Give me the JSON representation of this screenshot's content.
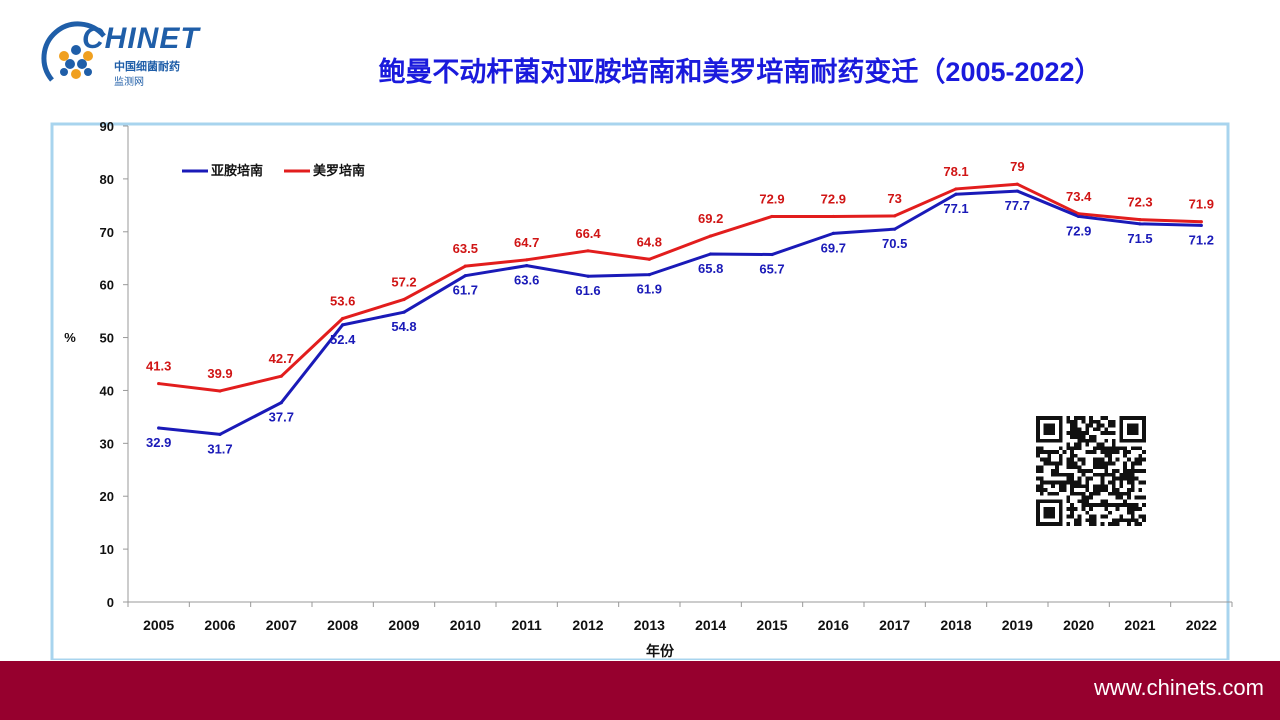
{
  "logo": {
    "name": "CHINET",
    "subtitle_line1": "中国细菌耐药",
    "subtitle_line2": "监测网"
  },
  "footer": {
    "url": "www.chinets.com"
  },
  "colors": {
    "series1": "#1a1ab8",
    "series2": "#e21d1d",
    "label1": "#1a1ab8",
    "label2": "#d01515",
    "footer": "#96002e",
    "title": "#1a1adc"
  },
  "chart_data": {
    "type": "line",
    "title": "鲍曼不动杆菌对亚胺培南和美罗培南耐药变迁（2005-2022）",
    "xlabel": "年份",
    "ylabel": "%",
    "ylim": [
      0,
      90
    ],
    "yticks": [
      0,
      10,
      20,
      30,
      40,
      50,
      60,
      70,
      80,
      90
    ],
    "legend_position": "top-left",
    "categories": [
      "2005",
      "2006",
      "2007",
      "2008",
      "2009",
      "2010",
      "2011",
      "2012",
      "2013",
      "2014",
      "2015",
      "2016",
      "2017",
      "2018",
      "2019",
      "2020",
      "2021",
      "2022"
    ],
    "series": [
      {
        "name": "亚胺培南",
        "values": [
          32.9,
          31.7,
          37.7,
          52.4,
          54.8,
          61.7,
          63.6,
          61.6,
          61.9,
          65.8,
          65.7,
          69.7,
          70.5,
          77.1,
          77.7,
          72.9,
          71.5,
          71.2
        ]
      },
      {
        "name": "美罗培南",
        "values": [
          41.3,
          39.9,
          42.7,
          53.6,
          57.2,
          63.5,
          64.7,
          66.4,
          64.8,
          69.2,
          72.9,
          72.9,
          73,
          78.1,
          79,
          73.4,
          72.3,
          71.9
        ]
      }
    ]
  }
}
